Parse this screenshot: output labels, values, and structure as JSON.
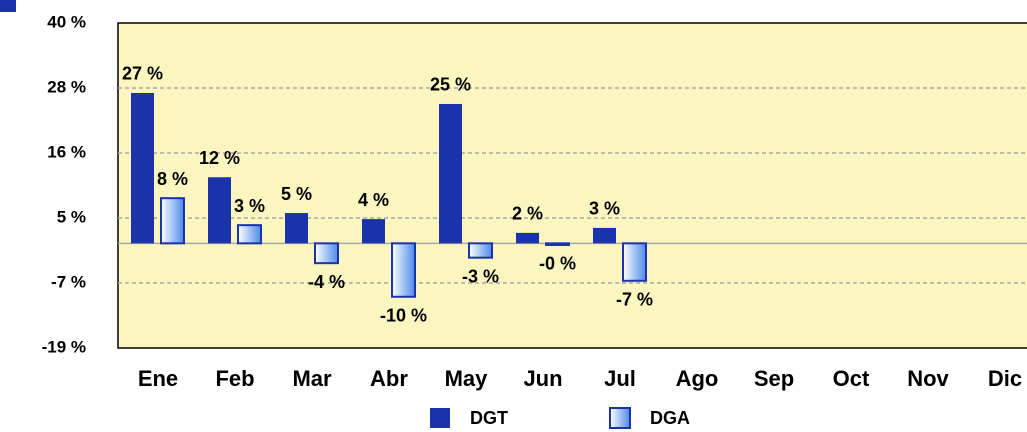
{
  "chart_data": {
    "type": "bar",
    "categories": [
      "Ene",
      "Feb",
      "Mar",
      "Abr",
      "May",
      "Jun",
      "Jul",
      "Ago",
      "Sep",
      "Oct",
      "Nov",
      "Dic"
    ],
    "series": [
      {
        "name": "DGT",
        "color": "#1a33a8",
        "values": [
          27.3,
          12,
          5.5,
          4.4,
          25.3,
          1.9,
          2.8,
          null,
          null,
          null,
          null,
          null
        ],
        "value_labels": [
          "27 %",
          "12 %",
          "5 %",
          "4 %",
          "25 %",
          "2 %",
          "3 %",
          null,
          null,
          null,
          null,
          null
        ]
      },
      {
        "name": "DGA",
        "color": "#7fb0f0",
        "values": [
          8.2,
          3.3,
          -3.6,
          -9.7,
          -2.6,
          -0.3,
          -6.8,
          null,
          null,
          null,
          null,
          null
        ],
        "value_labels": [
          "8 %",
          "3 %",
          "-4 %",
          "-10 %",
          "-3 %",
          "-0 %",
          "-7 %",
          null,
          null,
          null,
          null,
          null
        ]
      }
    ],
    "ylim": [
      -19,
      40
    ],
    "yticks": [
      {
        "value": -19,
        "label": "-19 %"
      },
      {
        "value": -7.2,
        "label": "-7 %"
      },
      {
        "value": 4.6,
        "label": "5 %"
      },
      {
        "value": 16.4,
        "label": "16 %"
      },
      {
        "value": 28.2,
        "label": "28 %"
      },
      {
        "value": 40,
        "label": "40 %"
      }
    ],
    "grid": true,
    "legend": "bottom"
  }
}
